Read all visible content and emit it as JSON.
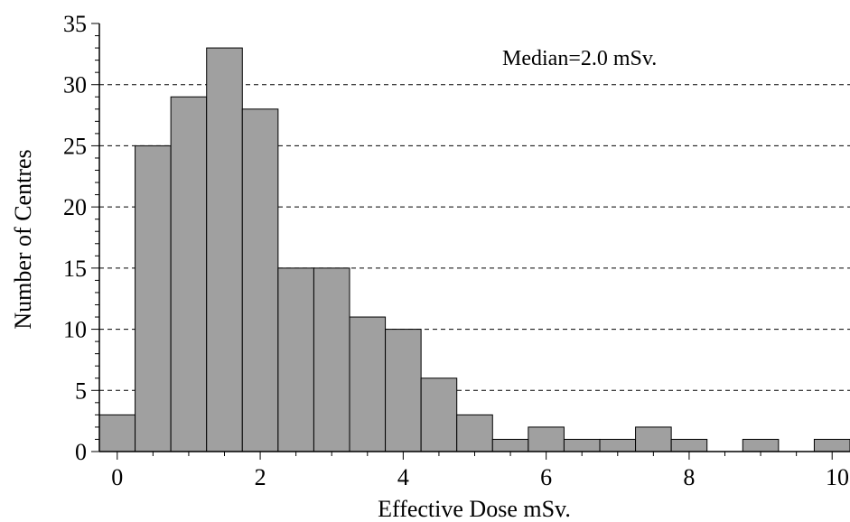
{
  "chart_data": {
    "type": "bar",
    "title": "",
    "xlabel": "Effective Dose mSv.",
    "ylabel": "Number of Centres",
    "annotation": "Median=2.0 mSv.",
    "bin_width": 0.5,
    "x_start": -0.25,
    "bins": [
      {
        "x": 0.0,
        "count": 3
      },
      {
        "x": 0.5,
        "count": 25
      },
      {
        "x": 1.0,
        "count": 29
      },
      {
        "x": 1.5,
        "count": 33
      },
      {
        "x": 2.0,
        "count": 28
      },
      {
        "x": 2.5,
        "count": 15
      },
      {
        "x": 3.0,
        "count": 15
      },
      {
        "x": 3.5,
        "count": 11
      },
      {
        "x": 4.0,
        "count": 10
      },
      {
        "x": 4.5,
        "count": 6
      },
      {
        "x": 5.0,
        "count": 3
      },
      {
        "x": 5.5,
        "count": 1
      },
      {
        "x": 6.0,
        "count": 2
      },
      {
        "x": 6.5,
        "count": 1
      },
      {
        "x": 7.0,
        "count": 1
      },
      {
        "x": 7.5,
        "count": 2
      },
      {
        "x": 8.0,
        "count": 1
      },
      {
        "x": 8.5,
        "count": 0
      },
      {
        "x": 9.0,
        "count": 1
      },
      {
        "x": 9.5,
        "count": 0
      },
      {
        "x": 10.0,
        "count": 1
      }
    ],
    "xlim": [
      -0.25,
      10.25
    ],
    "ylim": [
      0,
      35
    ],
    "x_ticks": [
      "0",
      "2",
      "4",
      "6",
      "8",
      "10"
    ],
    "y_ticks": [
      "0",
      "5",
      "10",
      "15",
      "20",
      "25",
      "30",
      "35"
    ],
    "grid": "horizontal dashed",
    "bar_color": "#a0a0a0"
  }
}
